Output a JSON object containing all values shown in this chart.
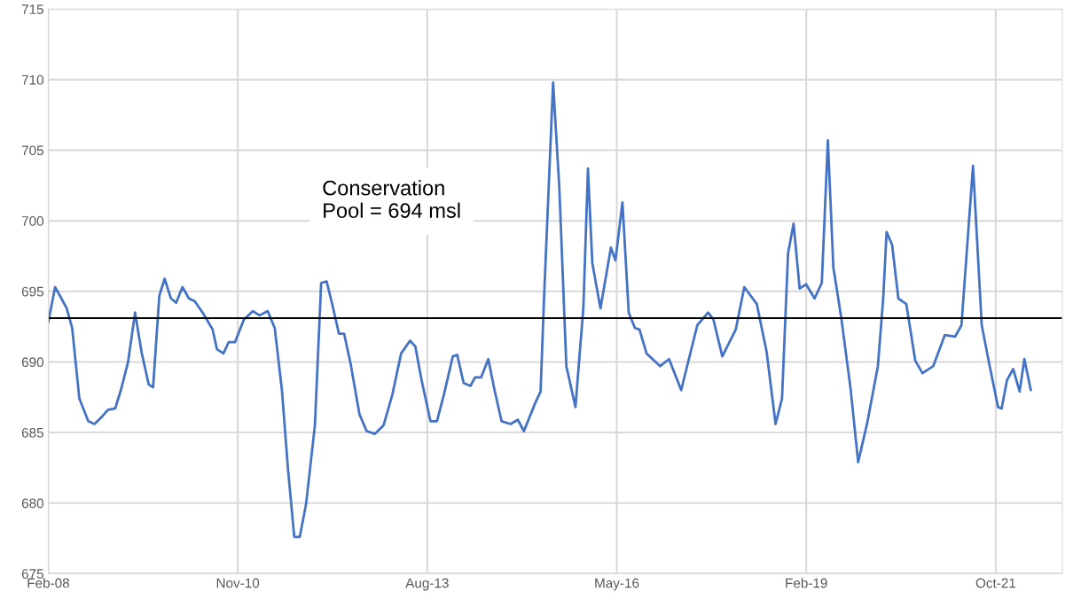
{
  "chart_data": {
    "type": "line",
    "x": [
      "2008-02-20",
      "2008-03-27",
      "2008-04-29",
      "2008-05-27",
      "2008-06-25",
      "2008-08-02",
      "2008-09-18",
      "2008-10-21",
      "2008-11-28",
      "2008-12-30",
      "2009-02-07",
      "2009-03-09",
      "2009-04-16",
      "2009-05-23",
      "2009-06-26",
      "2009-08-03",
      "2009-08-26",
      "2009-09-28",
      "2009-10-26",
      "2009-11-28",
      "2009-12-26",
      "2010-01-28",
      "2010-03-03",
      "2010-04-03",
      "2010-05-19",
      "2010-07-06",
      "2010-07-29",
      "2010-09-01",
      "2010-09-29",
      "2010-11-01",
      "2010-12-18",
      "2011-02-04",
      "2011-03-11",
      "2011-04-23",
      "2011-05-30",
      "2011-07-07",
      "2011-08-08",
      "2011-09-10",
      "2011-10-09",
      "2011-11-11",
      "2011-12-28",
      "2012-01-30",
      "2012-02-28",
      "2012-03-30",
      "2012-05-03",
      "2012-05-30",
      "2012-07-03",
      "2012-08-19",
      "2012-09-26",
      "2012-11-08",
      "2012-12-24",
      "2013-02-09",
      "2013-03-27",
      "2013-05-13",
      "2013-06-10",
      "2013-07-13",
      "2013-08-29",
      "2013-10-02",
      "2013-11-08",
      "2013-12-25",
      "2014-01-17",
      "2014-02-20",
      "2014-03-28",
      "2014-04-21",
      "2014-05-23",
      "2014-06-30",
      "2014-08-02",
      "2014-09-08",
      "2014-10-25",
      "2014-12-03",
      "2015-01-04",
      "2015-03-05",
      "2015-04-02",
      "2015-04-21",
      "2015-06-07",
      "2015-07-10",
      "2015-08-16",
      "2015-10-03",
      "2015-11-14",
      "2015-12-08",
      "2015-12-31",
      "2016-02-12",
      "2016-04-07",
      "2016-05-01",
      "2016-06-07",
      "2016-07-10",
      "2016-08-12",
      "2016-09-05",
      "2016-10-12",
      "2016-12-23",
      "2017-02-08",
      "2017-04-13",
      "2017-07-07",
      "2017-09-02",
      "2017-09-30",
      "2017-11-16",
      "2018-01-26",
      "2018-03-12",
      "2018-05-17",
      "2018-07-08",
      "2018-08-24",
      "2018-09-27",
      "2018-10-29",
      "2018-11-27",
      "2018-12-29",
      "2019-02-01",
      "2019-03-18",
      "2019-04-25",
      "2019-05-27",
      "2019-06-25",
      "2019-08-06",
      "2019-09-23",
      "2019-11-03",
      "2019-12-21",
      "2020-02-15",
      "2020-03-14",
      "2020-04-01",
      "2020-04-30",
      "2020-06-02",
      "2020-07-14",
      "2020-08-30",
      "2020-10-07",
      "2020-12-03",
      "2021-02-02",
      "2021-03-29",
      "2021-05-01",
      "2021-07-01",
      "2021-08-16",
      "2021-09-24",
      "2021-11-10",
      "2021-11-29",
      "2021-12-27",
      "2022-01-29",
      "2022-03-04",
      "2022-03-29",
      "2022-05-02"
    ],
    "series": [
      {
        "color": "#4472c4",
        "values": [
          692.8,
          695.3,
          694.5,
          693.8,
          692.4,
          687.4,
          685.8,
          685.6,
          686.1,
          686.6,
          686.7,
          688.0,
          690.0,
          693.5,
          690.7,
          688.4,
          688.2,
          694.7,
          695.9,
          694.5,
          694.2,
          695.3,
          694.5,
          694.3,
          693.4,
          692.3,
          690.9,
          690.6,
          691.4,
          691.4,
          693.0,
          693.6,
          693.3,
          693.6,
          692.4,
          688.0,
          682.4,
          677.6,
          677.6,
          679.9,
          685.5,
          695.6,
          695.7,
          694.0,
          692.0,
          692.0,
          689.9,
          686.3,
          685.1,
          684.9,
          685.5,
          687.7,
          690.6,
          691.5,
          691.1,
          688.7,
          685.8,
          685.8,
          687.7,
          690.4,
          690.5,
          688.5,
          688.3,
          688.9,
          688.9,
          690.2,
          688.0,
          685.8,
          685.6,
          685.9,
          685.1,
          687.1,
          687.9,
          694.8,
          709.8,
          702.3,
          689.7,
          686.8,
          693.9,
          703.7,
          697.0,
          693.8,
          698.1,
          697.2,
          701.3,
          693.5,
          692.4,
          692.3,
          690.6,
          689.7,
          690.2,
          688.0,
          692.6,
          693.5,
          693.0,
          690.4,
          692.3,
          695.3,
          694.1,
          690.7,
          685.6,
          687.4,
          697.7,
          699.8,
          695.2,
          695.5,
          694.5,
          695.6,
          705.7,
          696.7,
          693.1,
          688.2,
          682.9,
          685.7,
          689.7,
          694.5,
          699.2,
          698.3,
          694.5,
          694.1,
          690.1,
          689.2,
          689.7,
          691.9,
          691.8,
          692.6,
          703.9,
          692.6,
          689.9,
          686.8,
          686.7,
          688.7,
          689.5,
          687.9,
          690.2,
          688.0
        ]
      }
    ],
    "xlim": [
      "2008-02-20",
      "2022-10-15"
    ],
    "xticks": [
      {
        "value": "2008-02-20",
        "label": "Feb-08"
      },
      {
        "value": "2010-11-16",
        "label": "Nov-10"
      },
      {
        "value": "2013-08-12",
        "label": "Aug-13"
      },
      {
        "value": "2016-05-08",
        "label": "May-16"
      },
      {
        "value": "2019-02-02",
        "label": "Feb-19"
      },
      {
        "value": "2021-10-29",
        "label": "Oct-21"
      }
    ],
    "ylim": [
      675,
      715
    ],
    "yticks": [
      675,
      680,
      685,
      690,
      695,
      700,
      705,
      710,
      715
    ],
    "grid": true,
    "ref_lines": [
      {
        "axis": "y",
        "value": 693.1,
        "color": "#000000"
      }
    ],
    "annotations": [
      "Conservation\nPool = 694 msl"
    ]
  }
}
